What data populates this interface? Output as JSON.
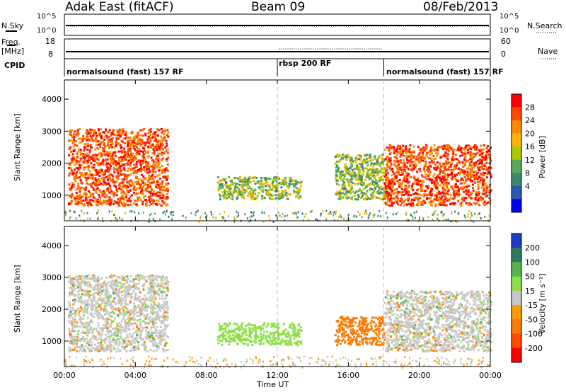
{
  "header": {
    "station": "Adak East (fitACF)",
    "beam": "Beam 09",
    "date": "08/Feb/2013"
  },
  "strips": {
    "nsky_label": "N.Sky",
    "nsky_ticks": [
      "10^5",
      "10^0"
    ],
    "nsearch_label": "N.Search",
    "nsearch_ticks": [
      "10^5",
      "10^0"
    ],
    "freq_label": "Freq.",
    "freq_unit": "[MHz]",
    "freq_ticks": [
      "18",
      "8"
    ],
    "nave_label": "Nave",
    "nave_ticks": [
      "60",
      "0"
    ],
    "cpid_label": "CPID",
    "cpid_segments": [
      {
        "label": "normalsound (fast) 157 RF",
        "start_hour": 0,
        "end_hour": 12
      },
      {
        "label": "rbsp 200 RF",
        "start_hour": 12,
        "end_hour": 18
      },
      {
        "label": "normalsound (fast) 157 RF",
        "start_hour": 18,
        "end_hour": 24
      }
    ]
  },
  "chart_data": [
    {
      "type": "heatmap",
      "name": "power",
      "ylabel": "Slant Range [km]",
      "xlabel": "",
      "xlim": [
        0,
        24
      ],
      "ylim": [
        200,
        4600
      ],
      "yticks": [
        "1000",
        "2000",
        "3000",
        "4000"
      ],
      "colorbar": {
        "label": "Power [dB]",
        "ticks": [
          "28",
          "24",
          "20",
          "16",
          "12",
          "8",
          "4"
        ],
        "colors": [
          "#ff0000",
          "#ff4a00",
          "#ff8c00",
          "#ffb400",
          "#a8c800",
          "#5aa85a",
          "#3a8a6a",
          "#2a5ab0",
          "#0000ff"
        ]
      },
      "regions": [
        {
          "t0": 0.2,
          "t1": 5.8,
          "r0": 700,
          "r1": 3100,
          "level": "high"
        },
        {
          "t0": 8.6,
          "t1": 13.3,
          "r0": 900,
          "r1": 1600,
          "level": "mid"
        },
        {
          "t0": 15.2,
          "t1": 18.2,
          "r0": 900,
          "r1": 2300,
          "level": "mid"
        },
        {
          "t0": 18.0,
          "t1": 24.0,
          "r0": 700,
          "r1": 2600,
          "level": "high"
        }
      ]
    },
    {
      "type": "heatmap",
      "name": "velocity",
      "ylabel": "Slant Range [km]",
      "xlabel": "Time UT",
      "xlim": [
        0,
        24
      ],
      "ylim": [
        200,
        4600
      ],
      "yticks": [
        "1000",
        "2000",
        "3000",
        "4000"
      ],
      "xticks": [
        "00:00",
        "04:00",
        "08:00",
        "12:00",
        "16:00",
        "20:00",
        "00:00"
      ],
      "colorbar": {
        "label": "Velocity [m s⁻¹]",
        "ticks": [
          "200",
          "100",
          "50",
          "15",
          "-15",
          "-50",
          "-100",
          "-200"
        ],
        "colors": [
          "#1e3cc8",
          "#2e7a58",
          "#56b44a",
          "#8ee04a",
          "#c8c8c8",
          "#ff9c00",
          "#ff7a00",
          "#ff4a00",
          "#ff0000"
        ]
      },
      "regions": [
        {
          "t0": 0.2,
          "t1": 5.8,
          "r0": 700,
          "r1": 3100,
          "level": "ground"
        },
        {
          "t0": 8.6,
          "t1": 13.3,
          "r0": 900,
          "r1": 1600,
          "level": "positive"
        },
        {
          "t0": 15.2,
          "t1": 18.0,
          "r0": 900,
          "r1": 1800,
          "level": "negative"
        },
        {
          "t0": 18.0,
          "t1": 24.0,
          "r0": 700,
          "r1": 2600,
          "level": "ground"
        }
      ]
    }
  ]
}
